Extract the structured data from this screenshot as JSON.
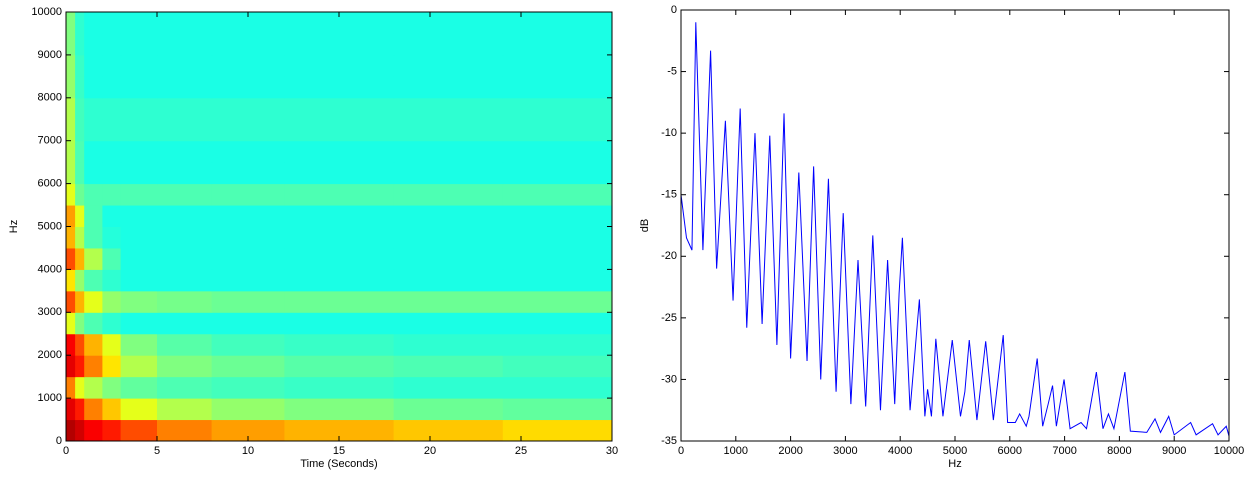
{
  "chart_data": [
    {
      "type": "heatmap",
      "xlabel": "Time (Seconds)",
      "ylabel": "Hz",
      "xlim": [
        0,
        30
      ],
      "ylim": [
        0,
        10000
      ],
      "xticks": [
        0,
        5,
        10,
        15,
        20,
        25,
        30
      ],
      "yticks": [
        0,
        1000,
        2000,
        3000,
        4000,
        5000,
        6000,
        7000,
        8000,
        9000,
        10000
      ],
      "colormap": "jet",
      "zlim": [
        0,
        1
      ],
      "x_edges": [
        0,
        0.5,
        1,
        2,
        3,
        5,
        8,
        12,
        18,
        24,
        30
      ],
      "y_edges": [
        0,
        500,
        1000,
        1500,
        2000,
        2500,
        3000,
        3500,
        4000,
        4500,
        5000,
        5500,
        6000,
        6500,
        7000,
        7500,
        8000,
        8500,
        9000,
        9500,
        10000
      ],
      "z": [
        [
          0.95,
          0.92,
          0.88,
          0.85,
          0.8,
          0.75,
          0.72,
          0.7,
          0.68,
          0.66
        ],
        [
          0.9,
          0.85,
          0.75,
          0.68,
          0.6,
          0.55,
          0.52,
          0.5,
          0.48,
          0.47
        ],
        [
          0.75,
          0.6,
          0.55,
          0.5,
          0.47,
          0.45,
          0.44,
          0.43,
          0.42,
          0.42
        ],
        [
          0.9,
          0.85,
          0.75,
          0.65,
          0.55,
          0.5,
          0.48,
          0.46,
          0.45,
          0.44
        ],
        [
          0.88,
          0.8,
          0.7,
          0.6,
          0.5,
          0.46,
          0.44,
          0.43,
          0.42,
          0.42
        ],
        [
          0.6,
          0.5,
          0.45,
          0.42,
          0.4,
          0.4,
          0.4,
          0.4,
          0.4,
          0.4
        ],
        [
          0.8,
          0.7,
          0.6,
          0.52,
          0.5,
          0.49,
          0.48,
          0.48,
          0.48,
          0.48
        ],
        [
          0.65,
          0.52,
          0.45,
          0.42,
          0.4,
          0.4,
          0.4,
          0.4,
          0.4,
          0.4
        ],
        [
          0.8,
          0.7,
          0.55,
          0.45,
          0.4,
          0.4,
          0.4,
          0.4,
          0.4,
          0.4
        ],
        [
          0.7,
          0.55,
          0.45,
          0.41,
          0.4,
          0.4,
          0.4,
          0.4,
          0.4,
          0.4
        ],
        [
          0.72,
          0.6,
          0.45,
          0.4,
          0.4,
          0.4,
          0.4,
          0.4,
          0.4,
          0.4
        ],
        [
          0.6,
          0.48,
          0.45,
          0.45,
          0.45,
          0.45,
          0.45,
          0.45,
          0.45,
          0.45
        ],
        [
          0.55,
          0.45,
          0.4,
          0.4,
          0.4,
          0.4,
          0.4,
          0.4,
          0.4,
          0.4
        ],
        [
          0.55,
          0.45,
          0.4,
          0.4,
          0.4,
          0.4,
          0.4,
          0.4,
          0.4,
          0.4
        ],
        [
          0.55,
          0.44,
          0.42,
          0.42,
          0.42,
          0.42,
          0.42,
          0.42,
          0.42,
          0.42
        ],
        [
          0.55,
          0.44,
          0.42,
          0.42,
          0.42,
          0.42,
          0.42,
          0.42,
          0.42,
          0.42
        ],
        [
          0.52,
          0.43,
          0.4,
          0.4,
          0.4,
          0.4,
          0.4,
          0.4,
          0.4,
          0.4
        ],
        [
          0.52,
          0.43,
          0.4,
          0.4,
          0.4,
          0.4,
          0.4,
          0.4,
          0.4,
          0.4
        ],
        [
          0.5,
          0.42,
          0.4,
          0.4,
          0.4,
          0.4,
          0.4,
          0.4,
          0.4,
          0.4
        ],
        [
          0.5,
          0.42,
          0.4,
          0.4,
          0.4,
          0.4,
          0.4,
          0.4,
          0.4,
          0.4
        ]
      ]
    },
    {
      "type": "line",
      "xlabel": "Hz",
      "ylabel": "dB",
      "xlim": [
        0,
        10000
      ],
      "ylim": [
        -35,
        0
      ],
      "xticks": [
        0,
        1000,
        2000,
        3000,
        4000,
        5000,
        6000,
        7000,
        8000,
        9000,
        10000
      ],
      "yticks": [
        -35,
        -30,
        -25,
        -20,
        -15,
        -10,
        -5,
        0
      ],
      "color": "#0000ff",
      "x": [
        0,
        100,
        200,
        270,
        400,
        540,
        650,
        810,
        950,
        1080,
        1200,
        1350,
        1480,
        1620,
        1750,
        1880,
        2000,
        2150,
        2300,
        2420,
        2550,
        2690,
        2830,
        2960,
        3100,
        3230,
        3370,
        3500,
        3640,
        3770,
        3900,
        3980,
        4040,
        4180,
        4350,
        4450,
        4500,
        4570,
        4650,
        4780,
        4950,
        5100,
        5180,
        5260,
        5400,
        5560,
        5700,
        5880,
        5960,
        6100,
        6180,
        6300,
        6350,
        6500,
        6600,
        6700,
        6780,
        6850,
        6990,
        7100,
        7300,
        7400,
        7580,
        7700,
        7800,
        7900,
        8100,
        8200,
        8500,
        8650,
        8750,
        8900,
        9000,
        9300,
        9400,
        9700,
        9800,
        9950,
        10000
      ],
      "values": [
        -15,
        -18.5,
        -19.5,
        -1,
        -19.5,
        -3.3,
        -21,
        -9,
        -23.6,
        -8,
        -25.8,
        -10,
        -25.5,
        -10.2,
        -27.2,
        -8.4,
        -28.3,
        -13.2,
        -28.5,
        -12.7,
        -30,
        -13.7,
        -31,
        -16.5,
        -32,
        -20.3,
        -32.2,
        -18.3,
        -32.5,
        -20.3,
        -32,
        -23,
        -18.5,
        -32.5,
        -23.5,
        -33,
        -30.8,
        -33,
        -26.7,
        -33,
        -26.8,
        -33,
        -31,
        -26.8,
        -33.3,
        -26.9,
        -33.3,
        -26.4,
        -33.5,
        -33.5,
        -32.8,
        -33.8,
        -33,
        -28.3,
        -33.8,
        -32,
        -30.5,
        -33.8,
        -30,
        -34,
        -33.5,
        -34,
        -29.4,
        -34,
        -32.8,
        -34,
        -29.4,
        -34.2,
        -34.3,
        -33.2,
        -34.3,
        -33,
        -34.5,
        -33.5,
        -34.5,
        -33.6,
        -34.5,
        -33.8,
        -34.6
      ]
    }
  ]
}
